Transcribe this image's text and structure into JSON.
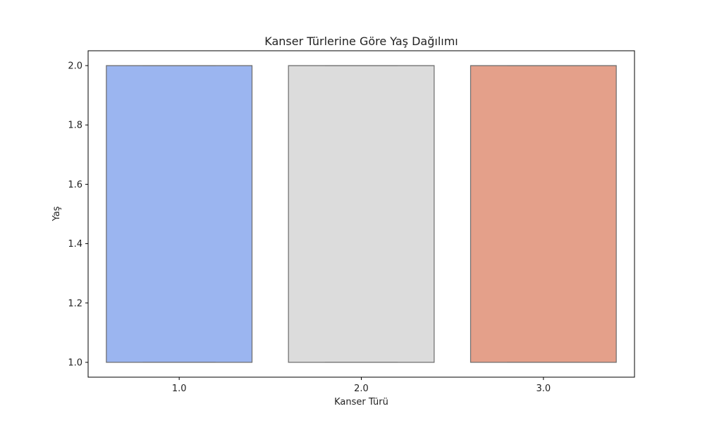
{
  "chart_data": {
    "type": "box",
    "title": "Kanser Türlerine Göre Yaş Dağılımı",
    "xlabel": "Kanser Türü",
    "ylabel": "Yaş",
    "categories": [
      "1.0",
      "2.0",
      "3.0"
    ],
    "boxes": [
      {
        "category": "1.0",
        "min": 1.0,
        "q1": 1.0,
        "median": 2.0,
        "q3": 2.0,
        "max": 2.0,
        "color": "#9bb5f0"
      },
      {
        "category": "2.0",
        "min": 1.0,
        "q1": 1.0,
        "median": 2.0,
        "q3": 2.0,
        "max": 2.0,
        "color": "#dcdcdc"
      },
      {
        "category": "3.0",
        "min": 1.0,
        "q1": 1.0,
        "median": 2.0,
        "q3": 2.0,
        "max": 2.0,
        "color": "#e4a08a"
      }
    ],
    "yticks": [
      "1.0",
      "1.2",
      "1.4",
      "1.6",
      "1.8",
      "2.0"
    ],
    "ylim": [
      0.95,
      2.05
    ],
    "grid": false,
    "edge_color": "#6b6b6b"
  }
}
